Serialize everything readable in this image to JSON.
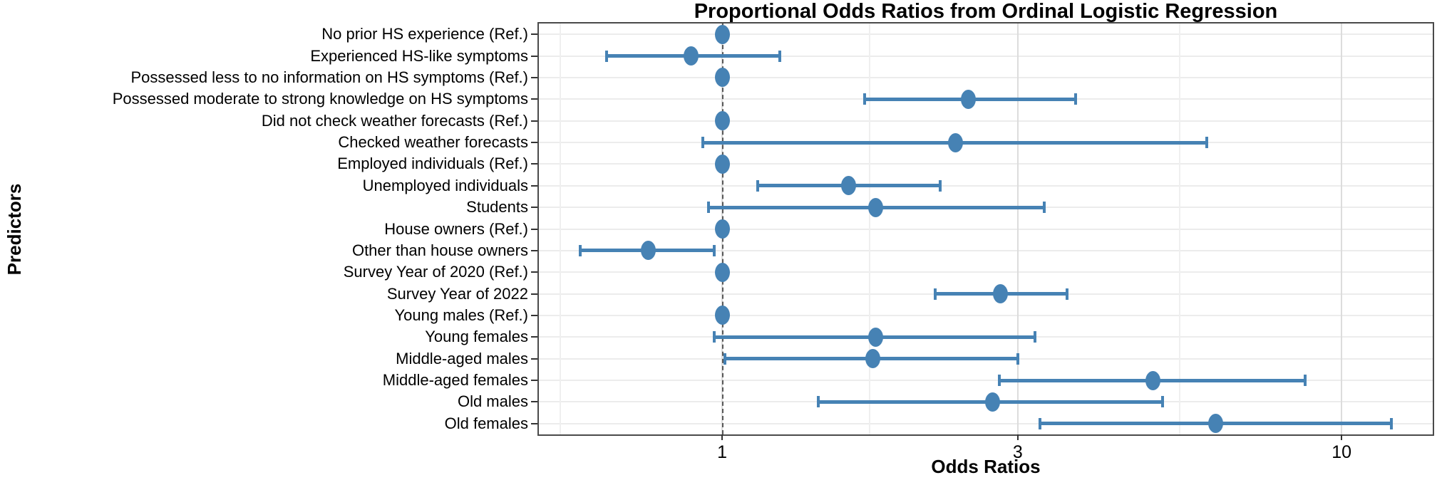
{
  "title": "Proportional Odds Ratios from Ordinal Logistic Regression",
  "colors": {
    "point": "#4682b4",
    "error_bar": "#4682b4",
    "reference_line": "#595959",
    "grid_major": "#dcdcdc",
    "grid_minor": "#efefef",
    "panel_border": "#4a4a4a",
    "text": "#000000"
  },
  "chart_data": {
    "type": "scatter",
    "subtype": "forest-plot-dot-and-ci",
    "orientation": "horizontal",
    "title": "Proportional Odds Ratios from Ordinal Logistic Regression",
    "xlabel": "Odds Ratios",
    "ylabel": "Predictors",
    "x_scale": "log10",
    "x_range": [
      0.506,
      14.03
    ],
    "x_ticks": [
      1,
      3,
      10
    ],
    "x_tick_labels": [
      "1",
      "3",
      "10"
    ],
    "x_minor_gridlines": [
      0.548,
      1.732,
      5.477
    ],
    "reference_line_x": 1,
    "grid": true,
    "legend": "none",
    "rows": [
      {
        "label": "No prior HS experience (Ref.)",
        "or": 1.0,
        "ci_low": null,
        "ci_high": null
      },
      {
        "label": "Experienced HS-like symptoms",
        "or": 0.89,
        "ci_low": 0.65,
        "ci_high": 1.24
      },
      {
        "label": "Possessed less to no information on HS symptoms (Ref.)",
        "or": 1.0,
        "ci_low": null,
        "ci_high": null
      },
      {
        "label": "Possessed moderate to strong knowledge on HS symptoms",
        "or": 2.5,
        "ci_low": 1.7,
        "ci_high": 3.72
      },
      {
        "label": "Did not check weather forecasts (Ref.)",
        "or": 1.0,
        "ci_low": null,
        "ci_high": null
      },
      {
        "label": "Checked weather forecasts",
        "or": 2.38,
        "ci_low": 0.93,
        "ci_high": 6.06
      },
      {
        "label": "Employed individuals (Ref.)",
        "or": 1.0,
        "ci_low": null,
        "ci_high": null
      },
      {
        "label": "Unemployed individuals",
        "or": 1.6,
        "ci_low": 1.14,
        "ci_high": 2.25
      },
      {
        "label": "Students",
        "or": 1.77,
        "ci_low": 0.95,
        "ci_high": 3.31
      },
      {
        "label": "House owners (Ref.)",
        "or": 1.0,
        "ci_low": null,
        "ci_high": null
      },
      {
        "label": "Other than house owners",
        "or": 0.76,
        "ci_low": 0.59,
        "ci_high": 0.97
      },
      {
        "label": "Survey Year of 2020 (Ref.)",
        "or": 1.0,
        "ci_low": null,
        "ci_high": null
      },
      {
        "label": "Survey Year of 2022",
        "or": 2.81,
        "ci_low": 2.21,
        "ci_high": 3.6
      },
      {
        "label": "Young males (Ref.)",
        "or": 1.0,
        "ci_low": null,
        "ci_high": null
      },
      {
        "label": "Young females",
        "or": 1.77,
        "ci_low": 0.97,
        "ci_high": 3.2
      },
      {
        "label": "Middle-aged males",
        "or": 1.75,
        "ci_low": 1.01,
        "ci_high": 3.0
      },
      {
        "label": "Middle-aged females",
        "or": 4.96,
        "ci_low": 2.8,
        "ci_high": 8.74
      },
      {
        "label": "Old males",
        "or": 2.73,
        "ci_low": 1.43,
        "ci_high": 5.14
      },
      {
        "label": "Old females",
        "or": 6.26,
        "ci_low": 3.26,
        "ci_high": 12.03
      }
    ]
  }
}
